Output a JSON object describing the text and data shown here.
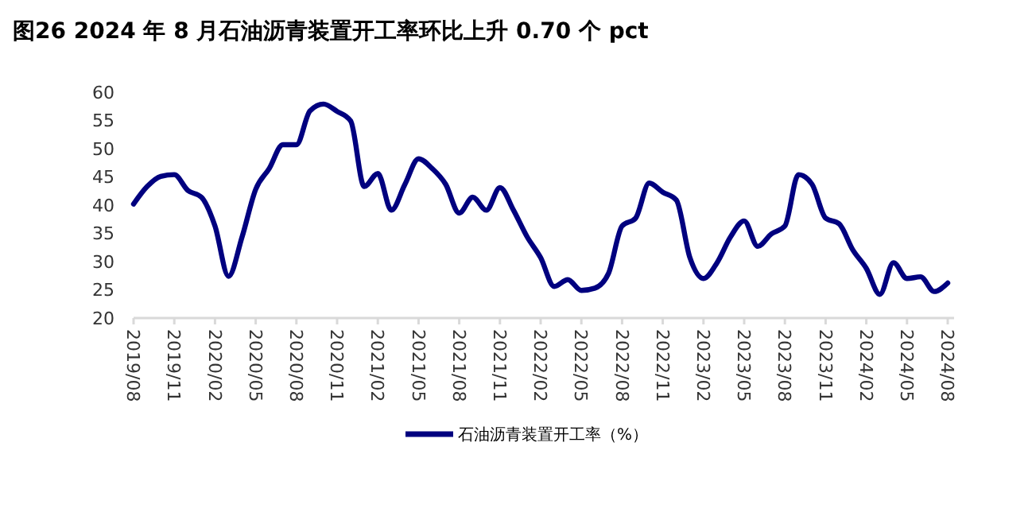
{
  "chart_data": {
    "type": "line",
    "title": "图26 2024 年 8 月石油沥青装置开工率环比上升 0.70 个 pct",
    "categories": [
      "2019/08",
      null,
      null,
      "2019/11",
      null,
      null,
      "2020/02",
      null,
      null,
      "2020/05",
      null,
      null,
      "2020/08",
      null,
      null,
      "2020/11",
      null,
      null,
      "2021/02",
      null,
      null,
      "2021/05",
      null,
      null,
      "2021/08",
      null,
      null,
      "2021/11",
      null,
      null,
      "2022/02",
      null,
      null,
      "2022/05",
      null,
      null,
      "2022/08",
      null,
      null,
      "2022/11",
      null,
      null,
      "2023/02",
      null,
      null,
      "2023/05",
      null,
      null,
      "2023/08",
      null,
      null,
      "2023/11",
      null,
      null,
      "2024/02",
      null,
      null,
      "2024/05",
      null,
      null,
      "2024/08"
    ],
    "series": [
      {
        "name": "石油沥青装置开工率（%）",
        "color": "#00007f",
        "values": [
          40.2,
          43.3,
          45.1,
          45.4,
          42.6,
          41.4,
          36.3,
          27.4,
          34.4,
          42.8,
          46.5,
          50.7,
          50.7,
          56.7,
          57.9,
          56.6,
          54.9,
          43.3,
          45.6,
          39.1,
          43.7,
          48.2,
          46.5,
          43.7,
          38.6,
          41.4,
          39.1,
          43.1,
          39.1,
          34.4,
          30.7,
          25.6,
          26.8,
          24.9,
          25.3,
          27.9,
          36.3,
          37.7,
          43.9,
          42.3,
          40.9,
          30.7,
          27.0,
          29.8,
          34.4,
          37.2,
          32.7,
          34.9,
          36.3,
          45.4,
          43.7,
          37.7,
          36.7,
          32.1,
          28.8,
          24.2,
          29.8,
          27.0,
          27.3,
          24.7,
          26.2
        ]
      }
    ],
    "ylim": [
      20,
      60
    ],
    "yticks": [
      20,
      25,
      30,
      35,
      40,
      45,
      50,
      55,
      60
    ],
    "grid": false,
    "legend": "bottom"
  }
}
